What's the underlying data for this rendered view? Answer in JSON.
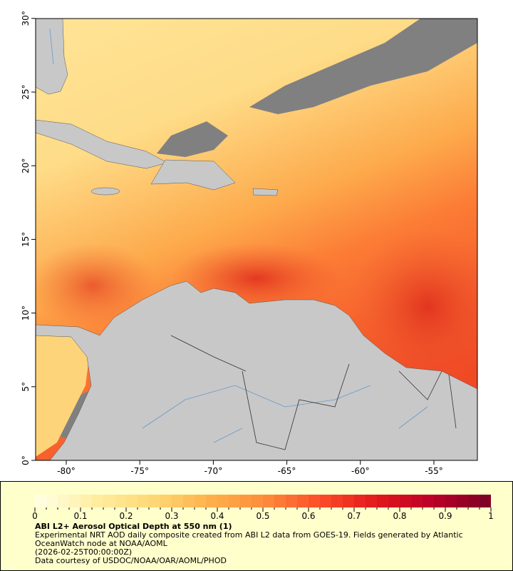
{
  "map": {
    "lat_labels": [
      "0°",
      "5°",
      "10°",
      "15°",
      "20°",
      "25°",
      "30°"
    ],
    "lon_labels": [
      "-80°",
      "-75°",
      "-70°",
      "-65°",
      "-60°",
      "-55°"
    ],
    "colors": {
      "land": "#c8c8c8",
      "no_data": "#808080",
      "rivers": "#6699cc",
      "border": "#333333"
    }
  },
  "legend": {
    "ticks": [
      "0",
      "0.1",
      "0.2",
      "0.3",
      "0.4",
      "0.5",
      "0.6",
      "0.7",
      "0.8",
      "0.9",
      "1"
    ],
    "palette": [
      "#ffffe0",
      "#ffeda0",
      "#fed976",
      "#feb24c",
      "#fd8d3c",
      "#fc4e2a",
      "#e31a1c",
      "#bd0026",
      "#800026"
    ],
    "range": [
      0,
      1
    ],
    "title": "ABI L2+ Aerosol Optical Depth at 550 nm (1)",
    "line1": "Experimental NRT AOD daily composite created from ABI L2 data from GOES-19. Fields generated by Atlantic",
    "line2": "OceanWatch node at NOAA/AOML",
    "line3": "(2026-02-25T00:00:00Z)",
    "line4": "Data courtesy of USDOC/NOAA/OAR/AOML/PHOD"
  }
}
